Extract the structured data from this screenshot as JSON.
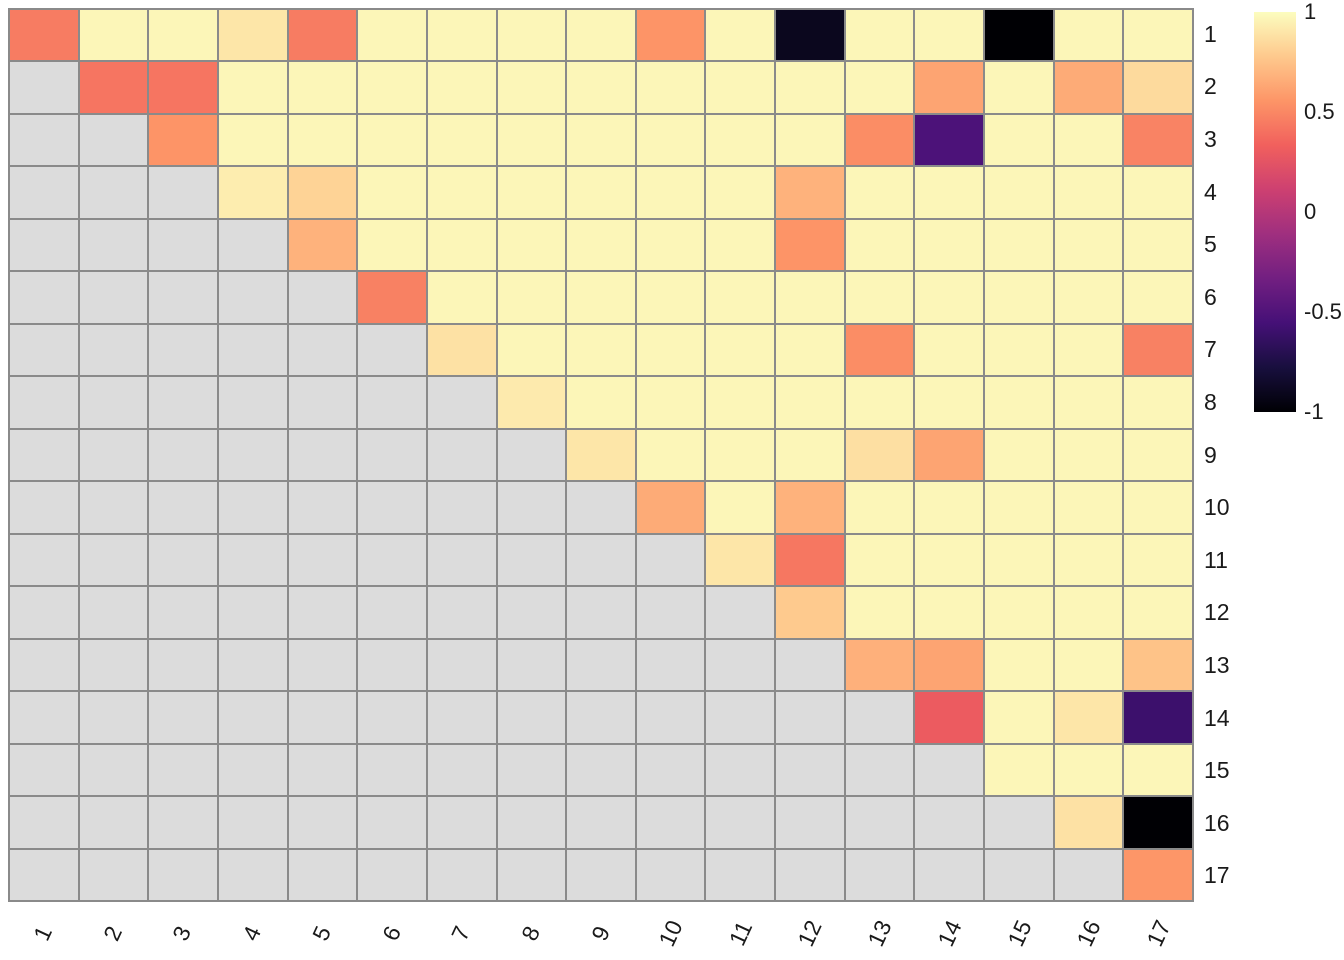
{
  "figure": {
    "background": "#FFFFFF"
  },
  "chart_data": {
    "type": "heatmap",
    "title": "",
    "description": "Upper-triangular correlation heatmap, 17 x 17, magma colormap, lower triangle NA (gray)",
    "x_labels": [
      "1",
      "2",
      "3",
      "4",
      "5",
      "6",
      "7",
      "8",
      "9",
      "10",
      "11",
      "12",
      "13",
      "14",
      "15",
      "16",
      "17"
    ],
    "y_labels": [
      "1",
      "2",
      "3",
      "4",
      "5",
      "6",
      "7",
      "8",
      "9",
      "10",
      "11",
      "12",
      "13",
      "14",
      "15",
      "16",
      "17"
    ],
    "value_range": [
      -1,
      1
    ],
    "na_color": "#DCDCDC",
    "grid_color": "#8A8A8A",
    "matrix": [
      [
        0.45,
        0.97,
        0.97,
        0.9,
        0.45,
        0.97,
        0.97,
        0.97,
        0.97,
        0.55,
        0.97,
        -0.9,
        0.97,
        0.97,
        -1.0,
        0.97,
        0.97
      ],
      [
        null,
        0.42,
        0.42,
        0.97,
        0.97,
        0.97,
        0.97,
        0.97,
        0.97,
        0.97,
        0.97,
        0.97,
        0.97,
        0.62,
        0.97,
        0.65,
        0.85
      ],
      [
        null,
        null,
        0.55,
        0.97,
        0.97,
        0.97,
        0.97,
        0.97,
        0.97,
        0.97,
        0.97,
        0.97,
        0.52,
        -0.52,
        0.97,
        0.97,
        0.48
      ],
      [
        null,
        null,
        null,
        0.93,
        0.82,
        0.97,
        0.97,
        0.97,
        0.97,
        0.97,
        0.97,
        0.68,
        0.97,
        0.97,
        0.97,
        0.97,
        0.97
      ],
      [
        null,
        null,
        null,
        null,
        0.68,
        0.97,
        0.97,
        0.97,
        0.97,
        0.97,
        0.97,
        0.55,
        0.97,
        0.97,
        0.97,
        0.97,
        0.97
      ],
      [
        null,
        null,
        null,
        null,
        null,
        0.47,
        0.97,
        0.97,
        0.97,
        0.97,
        0.97,
        0.97,
        0.97,
        0.97,
        0.97,
        0.97,
        0.97
      ],
      [
        null,
        null,
        null,
        null,
        null,
        null,
        0.88,
        0.97,
        0.97,
        0.97,
        0.97,
        0.97,
        0.52,
        0.97,
        0.97,
        0.97,
        0.47
      ],
      [
        null,
        null,
        null,
        null,
        null,
        null,
        null,
        0.92,
        0.97,
        0.97,
        0.97,
        0.97,
        0.97,
        0.97,
        0.97,
        0.97,
        0.97
      ],
      [
        null,
        null,
        null,
        null,
        null,
        null,
        null,
        null,
        0.9,
        0.97,
        0.97,
        0.97,
        0.87,
        0.62,
        0.97,
        0.97,
        0.97
      ],
      [
        null,
        null,
        null,
        null,
        null,
        null,
        null,
        null,
        null,
        0.65,
        0.97,
        0.68,
        0.97,
        0.97,
        0.97,
        0.97,
        0.97
      ],
      [
        null,
        null,
        null,
        null,
        null,
        null,
        null,
        null,
        null,
        null,
        0.9,
        0.43,
        0.97,
        0.97,
        0.97,
        0.97,
        0.97
      ],
      [
        null,
        null,
        null,
        null,
        null,
        null,
        null,
        null,
        null,
        null,
        null,
        0.78,
        0.97,
        0.97,
        0.97,
        0.97,
        0.97
      ],
      [
        null,
        null,
        null,
        null,
        null,
        null,
        null,
        null,
        null,
        null,
        null,
        null,
        0.67,
        0.62,
        0.97,
        0.97,
        0.75
      ],
      [
        null,
        null,
        null,
        null,
        null,
        null,
        null,
        null,
        null,
        null,
        null,
        null,
        null,
        0.3,
        0.97,
        0.9,
        -0.6
      ],
      [
        null,
        null,
        null,
        null,
        null,
        null,
        null,
        null,
        null,
        null,
        null,
        null,
        null,
        null,
        0.97,
        0.97,
        0.97
      ],
      [
        null,
        null,
        null,
        null,
        null,
        null,
        null,
        null,
        null,
        null,
        null,
        null,
        null,
        null,
        null,
        0.88,
        -1.0
      ],
      [
        null,
        null,
        null,
        null,
        null,
        null,
        null,
        null,
        null,
        null,
        null,
        null,
        null,
        null,
        null,
        null,
        0.56
      ]
    ],
    "colorbar": {
      "colormap": "magma",
      "stops": [
        "#000004",
        "#180F3E",
        "#451077",
        "#721F81",
        "#9F2F7F",
        "#CD4071",
        "#F1605D",
        "#FD9567",
        "#FEC98D",
        "#FCFDBF"
      ],
      "ticks": [
        {
          "label": "1",
          "value": 1
        },
        {
          "label": "0.5",
          "value": 0.5
        },
        {
          "label": "0",
          "value": 0
        },
        {
          "label": "-0.5",
          "value": -0.5
        },
        {
          "label": "-1",
          "value": -1
        }
      ]
    }
  }
}
